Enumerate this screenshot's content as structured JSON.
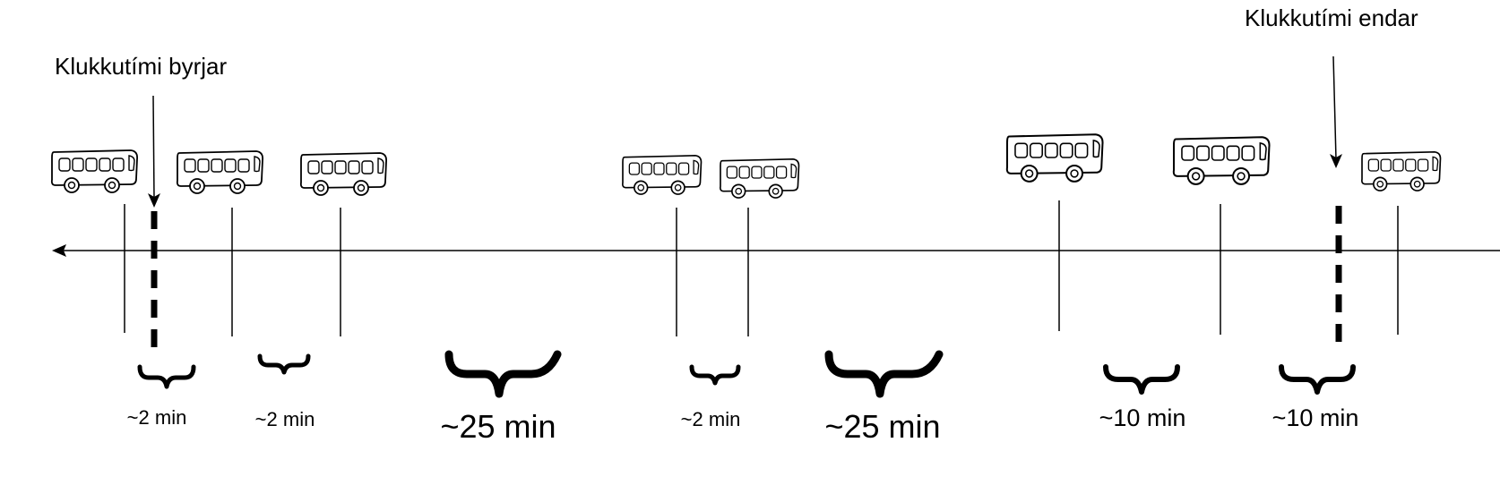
{
  "callouts": {
    "start": "Klukkutími byrjar",
    "end": "Klukkutími endar"
  },
  "gaps": [
    "~2 min",
    "~2 min",
    "~25 min",
    "~2 min",
    "~25 min",
    "~10 min",
    "~10 min"
  ],
  "icons": {
    "vehicle": "bus-icon",
    "timeline_direction": "arrow-left-icon"
  },
  "colors": {
    "ink": "#000000",
    "background": "#ffffff"
  }
}
